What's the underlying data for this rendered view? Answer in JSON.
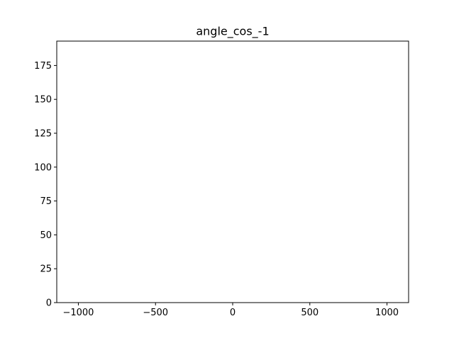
{
  "chart_data": {
    "type": "bar",
    "title": "angle_cos_-1",
    "xlabel": "",
    "ylabel": "",
    "xlim": [
      -1140,
      1140
    ],
    "ylim": [
      0,
      193
    ],
    "xticks": [
      -1000,
      -500,
      0,
      500,
      1000
    ],
    "xtick_labels": [
      "−1000",
      "−500",
      "0",
      "500",
      "1000"
    ],
    "yticks": [
      0,
      25,
      50,
      75,
      100,
      125,
      150,
      175
    ],
    "ytick_labels": [
      "0",
      "25",
      "50",
      "75",
      "100",
      "125",
      "150",
      "175"
    ],
    "series": [
      {
        "x": [],
        "values": []
      }
    ],
    "grid": false,
    "colors": {
      "axes": "#000000",
      "background": "#ffffff"
    }
  }
}
